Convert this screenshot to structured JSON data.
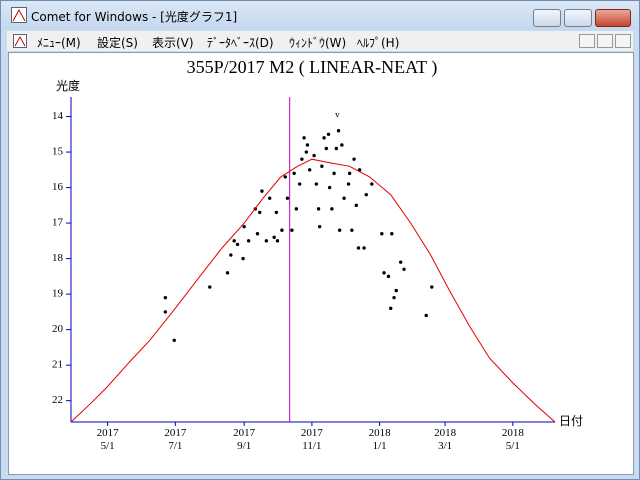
{
  "window": {
    "title": "Comet for Windows - [光度グラフ1]"
  },
  "menu": {
    "items": [
      "ﾒﾆｭｰ(M)",
      "設定(S)",
      "表示(V)",
      "ﾃﾞｰﾀﾍﾞｰｽ(D)",
      "ｳｨﾝﾄﾞｳ(W)",
      "ﾍﾙﾌﾟ(H)"
    ]
  },
  "chart_data": {
    "type": "scatter",
    "title": "355P/2017 M2 ( LINEAR-NEAT )",
    "y_label": "光度",
    "x_label": "日付",
    "xlim": [
      "2017-03-29",
      "2018-06-08"
    ],
    "xticks": [
      {
        "value": "2017-05-01",
        "label": "2017\n5/1"
      },
      {
        "value": "2017-07-01",
        "label": "2017\n7/1"
      },
      {
        "value": "2017-09-01",
        "label": "2017\n9/1"
      },
      {
        "value": "2017-11-01",
        "label": "2017\n11/1"
      },
      {
        "value": "2018-01-01",
        "label": "2018\n1/1"
      },
      {
        "value": "2018-03-01",
        "label": "2018\n3/1"
      },
      {
        "value": "2018-05-01",
        "label": "2018\n5/1"
      }
    ],
    "ylim": [
      13.45,
      22.6
    ],
    "invert_y": true,
    "yticks": [
      14,
      15,
      16,
      17,
      18,
      19,
      20,
      21,
      22
    ],
    "axis_color": "#0000c0",
    "series": [
      {
        "type": "scatter",
        "color": "#000000",
        "x": [
          "2017-06-22",
          "2017-06-22",
          "2017-06-30",
          "2017-08-01",
          "2017-08-17",
          "2017-08-20",
          "2017-08-23",
          "2017-08-26",
          "2017-08-31",
          "2017-09-01",
          "2017-09-05",
          "2017-09-11",
          "2017-09-13",
          "2017-09-15",
          "2017-09-17",
          "2017-09-21",
          "2017-09-24",
          "2017-09-28",
          "2017-09-30",
          "2017-10-01",
          "2017-10-05",
          "2017-10-08",
          "2017-10-10",
          "2017-10-14",
          "2017-10-16",
          "2017-10-18",
          "2017-10-21",
          "2017-10-23",
          "2017-10-25",
          "2017-10-27",
          "2017-10-28",
          "2017-10-30",
          "2017-11-03",
          "2017-11-05",
          "2017-11-07",
          "2017-11-08",
          "2017-11-10",
          "2017-11-12",
          "2017-11-14",
          "2017-11-16",
          "2017-11-17",
          "2017-11-19",
          "2017-11-21",
          "2017-11-23",
          "2017-11-25",
          "2017-11-26",
          "2017-11-28",
          "2017-11-30",
          "2017-12-04",
          "2017-12-05",
          "2017-12-07",
          "2017-12-09",
          "2017-12-11",
          "2017-12-13",
          "2017-12-14",
          "2017-12-18",
          "2017-12-20",
          "2017-12-25",
          "2018-01-03",
          "2018-01-05",
          "2018-01-09",
          "2018-01-11",
          "2018-01-12",
          "2018-01-14",
          "2018-01-16",
          "2018-01-20",
          "2018-01-23",
          "2018-02-12",
          "2018-02-17"
        ],
        "values": [
          19.1,
          19.5,
          20.3,
          18.8,
          18.4,
          17.9,
          17.5,
          17.6,
          18.0,
          17.1,
          17.5,
          16.6,
          17.3,
          16.7,
          16.1,
          17.5,
          16.3,
          17.4,
          16.7,
          17.5,
          17.2,
          15.7,
          16.3,
          17.2,
          15.6,
          16.6,
          15.9,
          15.2,
          14.6,
          15.0,
          14.8,
          15.5,
          15.1,
          15.9,
          16.6,
          17.1,
          15.4,
          14.6,
          14.9,
          14.5,
          16.0,
          16.6,
          15.6,
          14.9,
          14.4,
          17.2,
          14.8,
          16.3,
          15.9,
          15.6,
          17.2,
          15.2,
          16.5,
          17.7,
          15.5,
          17.7,
          16.2,
          15.9,
          17.3,
          18.4,
          18.5,
          19.4,
          17.3,
          19.1,
          18.9,
          18.1,
          18.3,
          19.6,
          18.8
        ]
      },
      {
        "type": "line",
        "color": "#e00000",
        "x": [
          "2017-03-29",
          "2017-04-15",
          "2017-05-01",
          "2017-05-21",
          "2017-06-08",
          "2017-07-01",
          "2017-07-23",
          "2017-08-12",
          "2017-09-01",
          "2017-09-18",
          "2017-10-04",
          "2017-10-19",
          "2017-11-01",
          "2017-11-17",
          "2017-12-05",
          "2017-12-23",
          "2018-01-11",
          "2018-01-29",
          "2018-02-16",
          "2018-03-05",
          "2018-03-23",
          "2018-04-10",
          "2018-05-01",
          "2018-05-21",
          "2018-06-08"
        ],
        "values": [
          22.6,
          22.1,
          21.6,
          20.9,
          20.3,
          19.4,
          18.5,
          17.7,
          17.0,
          16.3,
          15.7,
          15.4,
          15.2,
          15.3,
          15.4,
          15.7,
          16.2,
          17.0,
          17.9,
          18.9,
          19.9,
          20.8,
          21.5,
          22.1,
          22.6
        ]
      }
    ],
    "vlines": [
      {
        "x": "2017-10-12",
        "color": "#c000c0"
      }
    ],
    "annotations": [
      {
        "text": "v",
        "x": "2017-11-24",
        "y": 14.0
      }
    ]
  }
}
